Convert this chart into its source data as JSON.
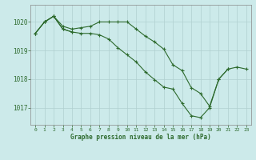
{
  "title": "Graphe pression niveau de la mer (hPa)",
  "bg_color": "#cceaea",
  "line_color": "#2d6a2d",
  "grid_color": "#b0d0d0",
  "axis_color": "#555555",
  "text_color": "#2d6a2d",
  "xlim": [
    -0.5,
    23.5
  ],
  "ylim": [
    1016.4,
    1020.6
  ],
  "yticks": [
    1017,
    1018,
    1019,
    1020
  ],
  "xticks": [
    0,
    1,
    2,
    3,
    4,
    5,
    6,
    7,
    8,
    9,
    10,
    11,
    12,
    13,
    14,
    15,
    16,
    17,
    18,
    19,
    20,
    21,
    22,
    23
  ],
  "series1_x": [
    0,
    1,
    2,
    3,
    4,
    5,
    6,
    7,
    8,
    9,
    10,
    11,
    12,
    13,
    14,
    15,
    16,
    17,
    18,
    19,
    20,
    21
  ],
  "series1_y": [
    1019.6,
    1020.0,
    1020.2,
    1019.85,
    1019.75,
    1019.8,
    1019.85,
    1020.0,
    1020.0,
    1020.0,
    1020.0,
    1019.75,
    1019.5,
    1019.3,
    1019.05,
    1018.5,
    1018.3,
    1017.7,
    1017.5,
    1017.05,
    1018.0,
    1018.35
  ],
  "series2_x": [
    0,
    1,
    2,
    3,
    4
  ],
  "series2_y": [
    1019.6,
    1020.0,
    1020.2,
    1019.75,
    1019.65
  ],
  "series3_x": [
    0,
    1,
    2,
    3,
    4,
    5,
    6,
    7,
    8,
    9,
    10,
    11,
    12,
    13,
    14,
    15,
    16,
    17,
    18,
    19,
    20,
    21,
    22,
    23
  ],
  "series3_y": [
    1019.6,
    1020.0,
    1020.2,
    1019.75,
    1019.65,
    1019.6,
    1019.6,
    1019.55,
    1019.4,
    1019.1,
    1018.85,
    1018.6,
    1018.25,
    1017.98,
    1017.72,
    1017.65,
    1017.15,
    1016.72,
    1016.65,
    1017.0,
    1018.0,
    1018.35,
    1018.42,
    1018.35
  ]
}
